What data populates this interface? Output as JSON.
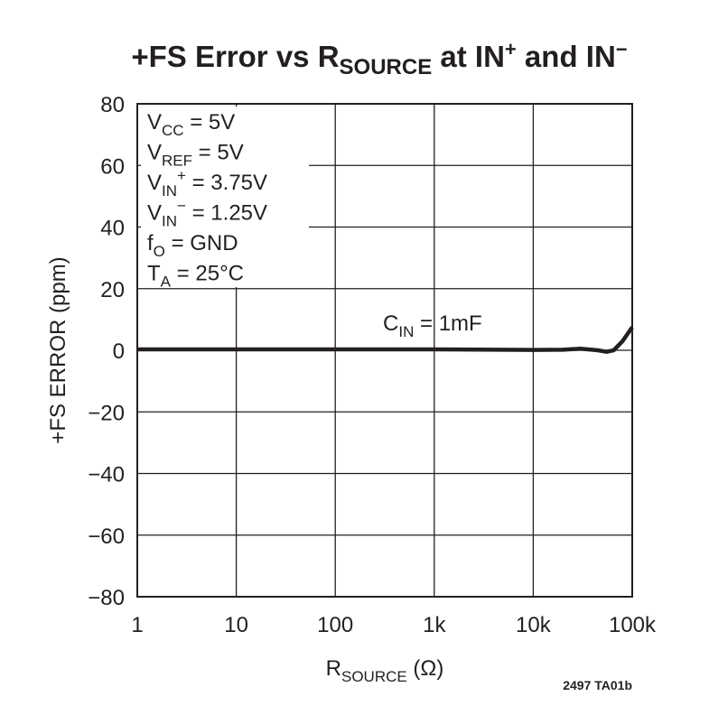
{
  "chart_data": {
    "type": "line",
    "title": [
      "+FS Error vs R",
      "SOURCE",
      " at IN",
      "+",
      " and IN",
      "−"
    ],
    "xlabel": [
      "R",
      "SOURCE",
      " (Ω)"
    ],
    "ylabel": "+FS ERROR (ppm)",
    "conditions": [
      [
        "V",
        "CC",
        " = 5V"
      ],
      [
        "V",
        "REF",
        " = 5V"
      ],
      [
        "V",
        "IN",
        "+",
        " = 3.75V"
      ],
      [
        "V",
        "IN",
        "−",
        " = 1.25V"
      ],
      [
        "f",
        "O",
        " = GND"
      ],
      [
        "T",
        "A",
        " = 25°C"
      ]
    ],
    "series_label": [
      "C",
      "IN",
      " = 1mF"
    ],
    "footer": "2497 TA01b",
    "x": [
      1,
      10,
      100,
      1000,
      10000,
      20000,
      30000,
      45000,
      55000,
      65000,
      80000,
      100000
    ],
    "series": [
      {
        "name": "C_IN",
        "color": "#231f20",
        "values": [
          0.3,
          0.3,
          0.3,
          0.3,
          0.1,
          0.2,
          0.5,
          0,
          -0.5,
          0,
          3,
          7.5
        ]
      }
    ],
    "log_x": true,
    "xlim": [
      1,
      100000
    ],
    "xticks": [
      1,
      10,
      100,
      {
        "value": 1000,
        "label": "1k"
      },
      {
        "value": 10000,
        "label": "10k"
      },
      {
        "value": 100000,
        "label": "100k"
      }
    ],
    "ylim": [
      -80,
      80
    ],
    "yticks": [
      {
        "value": -80,
        "label": "−80"
      },
      {
        "value": -60,
        "label": "−60"
      },
      {
        "value": -40,
        "label": "−40"
      },
      {
        "value": -20,
        "label": "−20"
      },
      0,
      20,
      40,
      60,
      80
    ],
    "grid": true
  }
}
